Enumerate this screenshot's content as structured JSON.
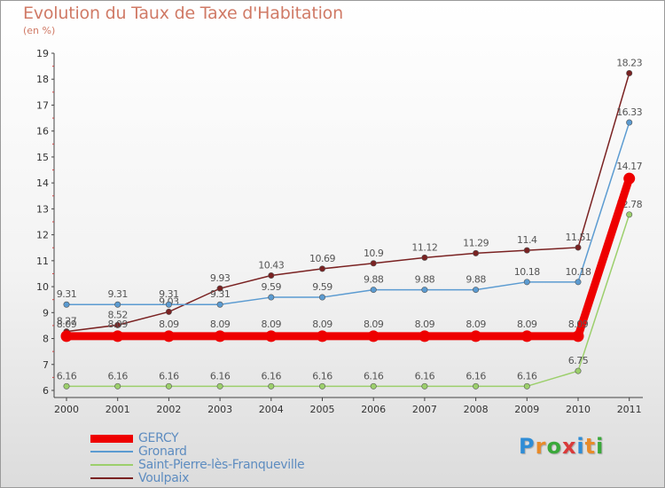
{
  "header": {
    "title": "Evolution du Taux de Taxe d'Habitation",
    "subtitle": "(en %)"
  },
  "logo": {
    "letters": [
      "P",
      "r",
      "o",
      "x",
      "i",
      "t",
      "i"
    ],
    "colors": [
      "#2f8dd6",
      "#e88b2a",
      "#3aa83a",
      "#d93a3a",
      "#2f8dd6",
      "#e88b2a",
      "#3aa83a"
    ]
  },
  "chart_data": {
    "type": "line",
    "title": "Evolution du Taux de Taxe d'Habitation",
    "ylabel": "(en %)",
    "xlabel": "",
    "x": [
      "2000",
      "2001",
      "2002",
      "2003",
      "2004",
      "2005",
      "2006",
      "2007",
      "2008",
      "2009",
      "2010",
      "2011"
    ],
    "ylim": [
      6,
      19
    ],
    "yticks": [
      "6",
      "7",
      "8",
      "9",
      "10",
      "11",
      "12",
      "13",
      "14",
      "15",
      "16",
      "17",
      "18",
      "19"
    ],
    "grid": false,
    "legend_position": "bottom-left",
    "series": [
      {
        "name": "GERCY",
        "color": "#ee0000",
        "values": [
          8.09,
          8.09,
          8.09,
          8.09,
          8.09,
          8.09,
          8.09,
          8.09,
          8.09,
          8.09,
          8.09,
          14.17
        ],
        "labels": [
          "8.09",
          "8.09",
          "8.09",
          "8.09",
          "8.09",
          "8.09",
          "8.09",
          "8.09",
          "8.09",
          "8.09",
          "8.09",
          "14.17"
        ]
      },
      {
        "name": "Gronard",
        "color": "#5b9bd1",
        "values": [
          9.31,
          9.31,
          9.31,
          9.31,
          9.59,
          9.59,
          9.88,
          9.88,
          9.88,
          10.18,
          10.18,
          16.33
        ],
        "labels": [
          "9.31",
          "9.31",
          "9.31",
          "9.31",
          "9.59",
          "9.59",
          "9.88",
          "9.88",
          "9.88",
          "10.18",
          "10.18",
          "16.33"
        ]
      },
      {
        "name": "Saint-Pierre-lès-Franqueville",
        "color": "#9ccf6c",
        "values": [
          6.16,
          6.16,
          6.16,
          6.16,
          6.16,
          6.16,
          6.16,
          6.16,
          6.16,
          6.16,
          6.75,
          12.78
        ],
        "labels": [
          "6.16",
          "6.16",
          "6.16",
          "6.16",
          "6.16",
          "6.16",
          "6.16",
          "6.16",
          "6.16",
          "6.16",
          "6.75",
          "12.78"
        ]
      },
      {
        "name": "Voulpaix",
        "color": "#7a2222",
        "values": [
          8.27,
          8.52,
          9.03,
          9.93,
          10.43,
          10.69,
          10.9,
          11.12,
          11.29,
          11.4,
          11.51,
          18.23
        ],
        "labels": [
          "8.27",
          "8.52",
          "9.03",
          "9.93",
          "10.43",
          "10.69",
          "10.9",
          "11.12",
          "11.29",
          "11.4",
          "11.51",
          "18.23"
        ]
      }
    ]
  }
}
